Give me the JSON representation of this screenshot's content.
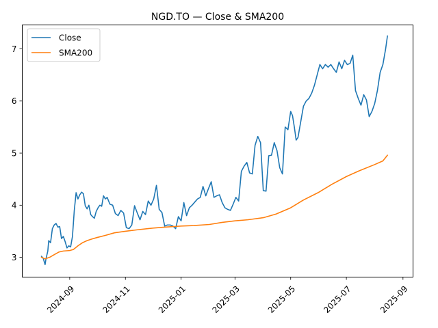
{
  "chart_data": {
    "type": "line",
    "title": "NGD.TO — Close & SMA200",
    "xlabel": "",
    "ylabel": "",
    "x_type": "date",
    "xlim": [
      "2024-07-11",
      "2025-09-12"
    ],
    "ylim": [
      2.62,
      7.46
    ],
    "x_ticks": [
      "2024-09",
      "2024-11",
      "2025-01",
      "2025-03",
      "2025-05",
      "2025-07",
      "2025-09"
    ],
    "x_tick_dates": [
      "2024-09-01",
      "2024-11-01",
      "2025-01-01",
      "2025-03-01",
      "2025-05-01",
      "2025-07-01",
      "2025-09-01"
    ],
    "y_ticks": [
      3,
      4,
      5,
      6,
      7
    ],
    "grid": false,
    "legend": {
      "placement": "top-left",
      "entries": [
        "Close",
        "SMA200"
      ]
    },
    "series": [
      {
        "name": "Close",
        "color": "#1f77b4",
        "x": [
          "2024-08-01",
          "2024-08-03",
          "2024-08-05",
          "2024-08-06",
          "2024-08-08",
          "2024-08-09",
          "2024-08-11",
          "2024-08-13",
          "2024-08-15",
          "2024-08-17",
          "2024-08-19",
          "2024-08-21",
          "2024-08-23",
          "2024-08-25",
          "2024-08-27",
          "2024-08-29",
          "2024-08-31",
          "2024-09-02",
          "2024-09-04",
          "2024-09-06",
          "2024-09-08",
          "2024-09-10",
          "2024-09-12",
          "2024-09-14",
          "2024-09-16",
          "2024-09-18",
          "2024-09-20",
          "2024-09-22",
          "2024-09-24",
          "2024-09-26",
          "2024-09-28",
          "2024-09-30",
          "2024-10-02",
          "2024-10-04",
          "2024-10-06",
          "2024-10-08",
          "2024-10-10",
          "2024-10-12",
          "2024-10-15",
          "2024-10-18",
          "2024-10-21",
          "2024-10-24",
          "2024-10-27",
          "2024-10-30",
          "2024-11-02",
          "2024-11-05",
          "2024-11-08",
          "2024-11-11",
          "2024-11-14",
          "2024-11-17",
          "2024-11-20",
          "2024-11-23",
          "2024-11-26",
          "2024-11-29",
          "2024-12-02",
          "2024-12-05",
          "2024-12-08",
          "2024-12-11",
          "2024-12-14",
          "2024-12-17",
          "2024-12-20",
          "2024-12-23",
          "2024-12-26",
          "2024-12-29",
          "2025-01-01",
          "2025-01-04",
          "2025-01-07",
          "2025-01-10",
          "2025-01-13",
          "2025-01-16",
          "2025-01-19",
          "2025-01-22",
          "2025-01-25",
          "2025-01-28",
          "2025-01-31",
          "2025-02-03",
          "2025-02-06",
          "2025-02-09",
          "2025-02-12",
          "2025-02-15",
          "2025-02-18",
          "2025-02-21",
          "2025-02-24",
          "2025-02-27",
          "2025-03-02",
          "2025-03-05",
          "2025-03-08",
          "2025-03-11",
          "2025-03-14",
          "2025-03-17",
          "2025-03-20",
          "2025-03-23",
          "2025-03-26",
          "2025-03-29",
          "2025-04-01",
          "2025-04-04",
          "2025-04-07",
          "2025-04-10",
          "2025-04-13",
          "2025-04-16",
          "2025-04-19",
          "2025-04-22",
          "2025-04-25",
          "2025-04-28",
          "2025-05-01",
          "2025-05-03",
          "2025-05-05",
          "2025-05-07",
          "2025-05-09",
          "2025-05-12",
          "2025-05-15",
          "2025-05-18",
          "2025-05-21",
          "2025-05-24",
          "2025-05-27",
          "2025-05-30",
          "2025-06-02",
          "2025-06-05",
          "2025-06-08",
          "2025-06-11",
          "2025-06-14",
          "2025-06-17",
          "2025-06-20",
          "2025-06-23",
          "2025-06-26",
          "2025-06-29",
          "2025-07-02",
          "2025-07-05",
          "2025-07-08",
          "2025-07-11",
          "2025-07-14",
          "2025-07-17",
          "2025-07-20",
          "2025-07-23",
          "2025-07-26",
          "2025-07-29",
          "2025-08-01",
          "2025-08-04",
          "2025-08-07",
          "2025-08-10",
          "2025-08-13",
          "2025-08-15"
        ],
        "y": [
          3.02,
          2.98,
          2.86,
          2.97,
          3.12,
          3.32,
          3.28,
          3.55,
          3.62,
          3.65,
          3.58,
          3.59,
          3.36,
          3.4,
          3.3,
          3.18,
          3.22,
          3.2,
          3.4,
          3.9,
          4.24,
          4.12,
          4.2,
          4.25,
          4.22,
          3.99,
          3.93,
          4.0,
          3.82,
          3.78,
          3.75,
          3.88,
          3.95,
          4.0,
          3.98,
          4.18,
          4.12,
          4.15,
          4.02,
          4.0,
          3.84,
          3.8,
          3.9,
          3.85,
          3.57,
          3.55,
          3.62,
          3.99,
          3.85,
          3.72,
          3.88,
          3.82,
          4.08,
          4.0,
          4.12,
          4.38,
          3.92,
          3.86,
          3.6,
          3.62,
          3.62,
          3.6,
          3.55,
          3.78,
          3.7,
          4.05,
          3.8,
          3.95,
          4.0,
          4.06,
          4.12,
          4.15,
          4.36,
          4.18,
          4.32,
          4.45,
          4.15,
          4.18,
          4.2,
          4.05,
          3.95,
          3.92,
          3.9,
          4.02,
          4.15,
          4.08,
          4.65,
          4.75,
          4.82,
          4.62,
          4.6,
          5.15,
          5.32,
          5.2,
          4.28,
          4.27,
          4.95,
          4.96,
          5.2,
          5.05,
          4.72,
          4.6,
          5.5,
          5.45,
          5.8,
          5.72,
          5.5,
          5.25,
          5.3,
          5.6,
          5.9,
          6.0,
          6.05,
          6.15,
          6.3,
          6.5,
          6.7,
          6.62,
          6.7,
          6.65,
          6.7,
          6.62,
          6.55,
          6.75,
          6.62,
          6.78,
          6.7,
          6.72,
          6.88,
          6.2,
          6.05,
          5.92,
          6.12,
          6.02,
          5.7,
          5.8,
          5.95,
          6.2,
          6.55,
          6.7,
          7.0,
          7.25
        ]
      },
      {
        "name": "SMA200",
        "color": "#ff7f0e",
        "x": [
          "2024-08-01",
          "2024-08-05",
          "2024-08-10",
          "2024-08-15",
          "2024-08-20",
          "2024-08-25",
          "2024-09-01",
          "2024-09-05",
          "2024-09-10",
          "2024-09-15",
          "2024-09-20",
          "2024-09-25",
          "2024-10-01",
          "2024-10-10",
          "2024-10-20",
          "2024-11-01",
          "2024-11-15",
          "2024-12-01",
          "2024-12-15",
          "2025-01-01",
          "2025-01-15",
          "2025-02-01",
          "2025-02-15",
          "2025-03-01",
          "2025-03-15",
          "2025-04-01",
          "2025-04-15",
          "2025-05-01",
          "2025-05-15",
          "2025-06-01",
          "2025-06-15",
          "2025-07-01",
          "2025-07-15",
          "2025-08-01",
          "2025-08-10",
          "2025-08-15"
        ],
        "y": [
          3.0,
          2.97,
          3.0,
          3.05,
          3.1,
          3.12,
          3.13,
          3.15,
          3.22,
          3.28,
          3.32,
          3.35,
          3.38,
          3.42,
          3.47,
          3.5,
          3.53,
          3.56,
          3.58,
          3.6,
          3.61,
          3.63,
          3.67,
          3.7,
          3.72,
          3.76,
          3.83,
          3.95,
          4.1,
          4.25,
          4.4,
          4.55,
          4.66,
          4.78,
          4.85,
          4.96
        ]
      }
    ]
  }
}
